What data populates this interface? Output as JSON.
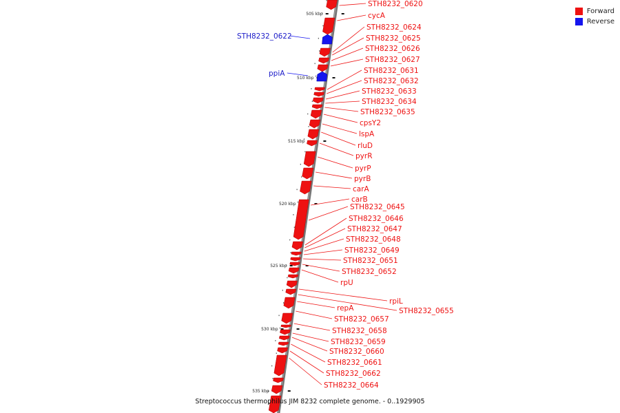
{
  "legend": {
    "forward_label": "Forward",
    "reverse_label": "Reverse",
    "forward_color": "#ee1111",
    "reverse_color": "#1515ee"
  },
  "caption": "Streptococcus thermophilus JIM 8232 complete genome. - 0..1929905",
  "ticks": [
    "505 kbp",
    "510 kbp",
    "515 kbp",
    "520 kbp",
    "525 kbp",
    "530 kbp",
    "535 kbp"
  ],
  "reverse_genes": [
    "STH8232_0622",
    "ppiA"
  ],
  "forward_genes": [
    "STH8232_0620",
    "cycA",
    "STH8232_0624",
    "STH8232_0625",
    "STH8232_0626",
    "STH8232_0627",
    "STH8232_0631",
    "STH8232_0632",
    "STH8232_0633",
    "STH8232_0634",
    "STH8232_0635",
    "cpsY2",
    "lspA",
    "rluD",
    "pyrR",
    "pyrP",
    "pyrB",
    "carA",
    "carB",
    "STH8232_0645",
    "STH8232_0646",
    "STH8232_0647",
    "STH8232_0648",
    "STH8232_0649",
    "STH8232_0651",
    "STH8232_0652",
    "rpU",
    "rpiL",
    "STH8232_0655",
    "repA",
    "STH8232_0657",
    "STH8232_0658",
    "STH8232_0659",
    "STH8232_0660",
    "STH8232_0661",
    "STH8232_0662",
    "STH8232_0664"
  ]
}
